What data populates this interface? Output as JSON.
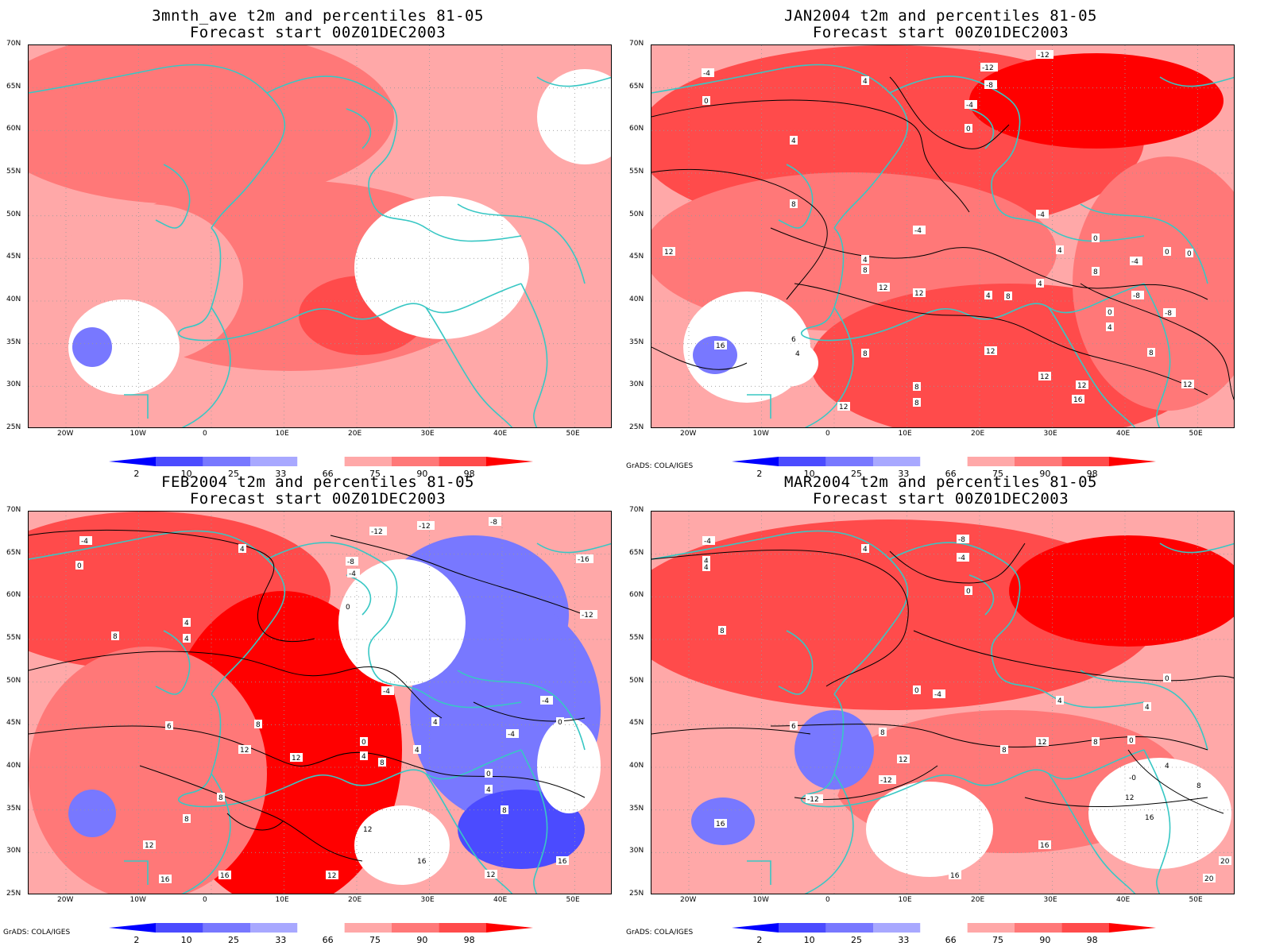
{
  "panels": [
    {
      "title_line1": "3mnth_ave t2m and percentiles 81-05",
      "title_line2": "Forecast start 00Z01DEC2003",
      "variant": "avg"
    },
    {
      "title_line1": "JAN2004 t2m and percentiles 81-05",
      "title_line2": "Forecast start 00Z01DEC2003",
      "variant": "jan"
    },
    {
      "title_line1": "FEB2004 t2m and percentiles 81-05",
      "title_line2": "Forecast start 00Z01DEC2003",
      "variant": "feb"
    },
    {
      "title_line1": "MAR2004 t2m and percentiles 81-05",
      "title_line2": "Forecast start 00Z01DEC2003",
      "variant": "mar"
    }
  ],
  "lat_labels": [
    "70N",
    "65N",
    "60N",
    "55N",
    "50N",
    "45N",
    "40N",
    "35N",
    "30N",
    "25N"
  ],
  "lon_labels": [
    "20W",
    "10W",
    "0",
    "10E",
    "20E",
    "30E",
    "40E",
    "50E"
  ],
  "colorbar": {
    "labels": [
      "2",
      "10",
      "25",
      "33",
      "66",
      "75",
      "90",
      "98"
    ],
    "colors": [
      "#0000ff",
      "#4b4bff",
      "#7878ff",
      "#a8a8ff",
      "#ffffff",
      "#ffa8a8",
      "#ff7878",
      "#ff4b4b",
      "#ff0000"
    ]
  },
  "credit": "GrADS: COLA/IGES",
  "colors": {
    "coast": "#38c7c4",
    "contour": "#000000"
  }
}
